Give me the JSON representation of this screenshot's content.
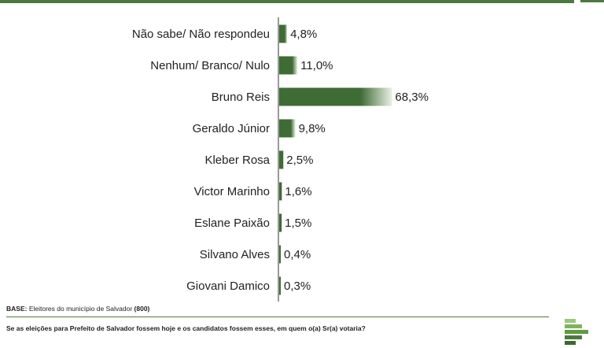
{
  "chart_data": {
    "type": "bar",
    "orientation": "horizontal",
    "categories": [
      "Não sabe/ Não respondeu",
      "Nenhum/ Branco/ Nulo",
      "Bruno Reis",
      "Geraldo Júnior",
      "Kleber Rosa",
      "Victor Marinho",
      "Eslane Paixão",
      "Silvano Alves",
      "Giovani Damico"
    ],
    "values": [
      4.8,
      11.0,
      68.3,
      9.8,
      2.5,
      1.6,
      1.5,
      0.4,
      0.3
    ],
    "value_labels": [
      "4,8%",
      "11,0%",
      "68,3%",
      "9,8%",
      "2,5%",
      "1,6%",
      "1,5%",
      "0,4%",
      "0,3%"
    ],
    "unit": "%",
    "xlim": [
      0,
      100
    ],
    "grid": false,
    "legend": "none",
    "bar_color": "#3f6b35",
    "bar_highlight": "#e9f1e4"
  },
  "footer": {
    "base_label": "BASE:",
    "base_text": " Eleitores do município de Salvador ",
    "base_count": "(800)",
    "question": "Se as eleições para Prefeito de Salvador fossem hoje e os candidatos fossem esses, em quem o(a) Sr(a) votaria?"
  },
  "colors": {
    "accent": "#4a7a3f",
    "text": "#222222"
  },
  "logo": {
    "icon": "pollster-logo-icon"
  }
}
